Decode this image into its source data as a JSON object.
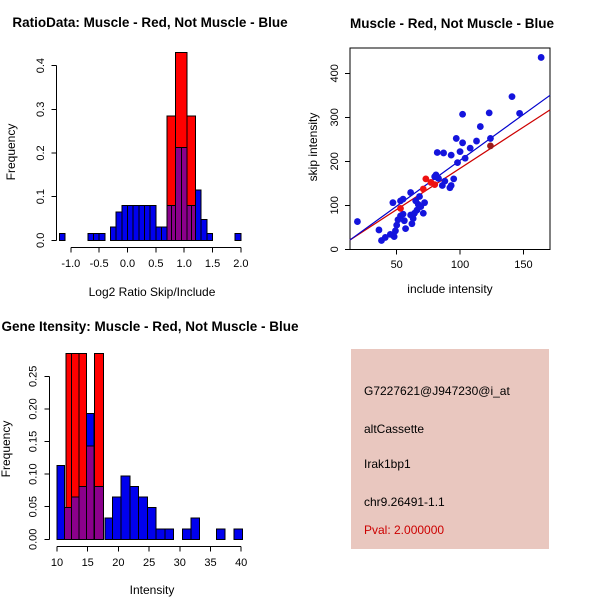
{
  "colors": {
    "background": "#ffffff",
    "hist_blue": "#0000ee",
    "hist_red": "#ff0000",
    "hist_overlap_purple": "#8b008b",
    "bar_stroke": "#000000",
    "point_blue": "#1414dd",
    "point_red": "#ee1111",
    "point_darkred": "#9b1b1b",
    "line_blue": "#0000cd",
    "line_red": "#cd0000",
    "axis_black": "#000000",
    "card_bg": "#e9c7bf",
    "card_text": "#000000",
    "pval_red": "#cc0000"
  },
  "info_card": {
    "lines": [
      {
        "text": "G7227621@J947230@i_at",
        "kind": "probe-id"
      },
      {
        "text": "altCassette",
        "kind": "event-type"
      },
      {
        "text": "Irak1bp1",
        "kind": "gene-symbol"
      },
      {
        "text": "chr9.26491-1.1",
        "kind": "locus"
      },
      {
        "text": "Pval: 2.000000",
        "kind": "pvalue"
      }
    ]
  },
  "chart_data": [
    {
      "type": "bar",
      "subtype": "overlaid-histograms",
      "title": "RatioData: Muscle - Red, Not Muscle - Blue",
      "xlabel": "Log2 Ratio Skip/Include",
      "ylabel": "Frequency",
      "xlim": [
        -1.3,
        2.1
      ],
      "ylim": [
        0,
        0.43
      ],
      "x_ticks": [
        -1.0,
        -0.5,
        0.0,
        0.5,
        1.0,
        1.5,
        2.0
      ],
      "x_tick_labels": [
        "-1.0",
        "-0.5",
        "0.0",
        "0.5",
        "1.0",
        "1.5",
        "2.0"
      ],
      "y_ticks": [
        0.0,
        0.1,
        0.2,
        0.3,
        0.4
      ],
      "y_tick_labels": [
        "0.0",
        "0.1",
        "0.2",
        "0.3",
        "0.4"
      ],
      "grid": false,
      "legend": "colors encode groups: Muscle = red, Not Muscle = blue, overlap = purple",
      "series": [
        {
          "name": "muscle-red-bars",
          "bars": [
            [
              0.7,
              0.85,
              0.285
            ],
            [
              0.85,
              1.05,
              0.43
            ],
            [
              1.05,
              1.2,
              0.285
            ]
          ]
        },
        {
          "name": "notmuscle-blue-bars",
          "bars": [
            [
              -1.2,
              -1.1,
              0.016
            ],
            [
              -0.7,
              -0.6,
              0.016
            ],
            [
              -0.6,
              -0.5,
              0.016
            ],
            [
              -0.5,
              -0.4,
              0.016
            ],
            [
              -0.3,
              -0.2,
              0.03
            ],
            [
              -0.2,
              -0.1,
              0.065
            ],
            [
              -0.1,
              0.0,
              0.08
            ],
            [
              0.0,
              0.1,
              0.08
            ],
            [
              0.1,
              0.2,
              0.08
            ],
            [
              0.2,
              0.3,
              0.08
            ],
            [
              0.3,
              0.4,
              0.08
            ],
            [
              0.4,
              0.5,
              0.08
            ],
            [
              0.5,
              0.6,
              0.03
            ],
            [
              0.6,
              0.7,
              0.03
            ],
            [
              1.2,
              1.3,
              0.115
            ],
            [
              1.3,
              1.4,
              0.048
            ],
            [
              1.4,
              1.5,
              0.016
            ],
            [
              1.9,
              2.0,
              0.016
            ]
          ]
        },
        {
          "name": "overlap-purple-bars",
          "bars": [
            [
              0.7,
              0.78,
              0.08
            ],
            [
              0.78,
              0.85,
              0.08
            ],
            [
              0.85,
              0.95,
              0.213
            ],
            [
              0.95,
              1.05,
              0.213
            ],
            [
              1.05,
              1.13,
              0.08
            ],
            [
              1.13,
              1.2,
              0.08
            ]
          ]
        }
      ]
    },
    {
      "type": "scatter",
      "title": "Muscle - Red, Not Muscle - Blue",
      "xlabel": "include intensity",
      "ylabel": "skip intensity",
      "xlim": [
        13,
        171
      ],
      "ylim": [
        0,
        464
      ],
      "x_ticks": [
        50,
        100,
        150
      ],
      "x_tick_labels": [
        "50",
        "100",
        "150"
      ],
      "y_ticks": [
        0,
        100,
        200,
        300,
        400
      ],
      "y_tick_labels": [
        "0",
        "100",
        "200",
        "300",
        "400"
      ],
      "grid": false,
      "series": [
        {
          "name": "not-muscle-blue-points",
          "points": [
            [
              19,
              63
            ],
            [
              36,
              44
            ],
            [
              38,
              20
            ],
            [
              41,
              27
            ],
            [
              45,
              34
            ],
            [
              48,
              29
            ],
            [
              49,
              42
            ],
            [
              50,
              55
            ],
            [
              51,
              67
            ],
            [
              53,
              76
            ],
            [
              55,
              80
            ],
            [
              56,
              65
            ],
            [
              57,
              47
            ],
            [
              61,
              78
            ],
            [
              62,
              58
            ],
            [
              63,
              70
            ],
            [
              64,
              82
            ],
            [
              66,
              89
            ],
            [
              67,
              102
            ],
            [
              69,
              97
            ],
            [
              71,
              82
            ],
            [
              72,
              106
            ],
            [
              47,
              106
            ],
            [
              53,
              110
            ],
            [
              55,
              114
            ],
            [
              61,
              129
            ],
            [
              65,
              110
            ],
            [
              68,
              120
            ],
            [
              80,
              165
            ],
            [
              83,
              161
            ],
            [
              88,
              155
            ],
            [
              95,
              160
            ],
            [
              93,
              145
            ],
            [
              92,
              140
            ],
            [
              86,
              145
            ],
            [
              81,
              169
            ],
            [
              87,
              219
            ],
            [
              93,
              214
            ],
            [
              82,
              220
            ],
            [
              98,
              197
            ],
            [
              104,
              207
            ],
            [
              97,
              252
            ],
            [
              108,
              230
            ],
            [
              100,
              222
            ],
            [
              102,
              242
            ],
            [
              113,
              246
            ],
            [
              116,
              279
            ],
            [
              124,
              252
            ],
            [
              102,
              307
            ],
            [
              123,
              310
            ],
            [
              141,
              347
            ],
            [
              147,
              309
            ],
            [
              164,
              436
            ]
          ]
        },
        {
          "name": "muscle-red-points",
          "points": [
            [
              53,
              93
            ],
            [
              71,
              137
            ],
            [
              73,
              160
            ],
            [
              77,
              152
            ],
            [
              80,
              147
            ]
          ]
        },
        {
          "name": "dark-red-point",
          "points": [
            [
              124,
              235
            ]
          ]
        }
      ],
      "fit_lines": [
        {
          "name": "blue-fit",
          "x0": 13,
          "y0": 21,
          "x1": 171,
          "y1": 350
        },
        {
          "name": "red-fit",
          "x0": 13,
          "y0": 21,
          "x1": 171,
          "y1": 317
        }
      ]
    },
    {
      "type": "bar",
      "subtype": "overlaid-histograms",
      "title": "Gene Itensity: Muscle - Red, Not Muscle - Blue",
      "xlabel": "Intensity",
      "ylabel": "Frequency",
      "xlim": [
        9.5,
        41
      ],
      "ylim": [
        0,
        0.29
      ],
      "x_ticks": [
        10,
        15,
        20,
        25,
        30,
        35,
        40
      ],
      "x_tick_labels": [
        "10",
        "15",
        "20",
        "25",
        "30",
        "35",
        "40"
      ],
      "y_ticks": [
        0.0,
        0.05,
        0.1,
        0.15,
        0.2,
        0.25
      ],
      "y_tick_labels": [
        "0.00",
        "0.05",
        "0.10",
        "0.15",
        "0.20",
        "0.25"
      ],
      "grid": false,
      "legend": "colors encode groups: Muscle = red, Not Muscle = blue, overlap = purple",
      "series": [
        {
          "name": "muscle-red-bars",
          "bars": [
            [
              11.5,
              12.4,
              0.285
            ],
            [
              12.4,
              13.6,
              0.285
            ],
            [
              13.6,
              14.8,
              0.285
            ],
            [
              14.8,
              16.0,
              0.143
            ],
            [
              16.1,
              17.6,
              0.285
            ]
          ]
        },
        {
          "name": "notmuscle-blue-bars",
          "bars": [
            [
              10.0,
              11.2,
              0.113
            ],
            [
              14.8,
              16.0,
              0.193
            ],
            [
              17.8,
              19.0,
              0.033
            ],
            [
              19.0,
              20.4,
              0.065
            ],
            [
              20.4,
              21.9,
              0.097
            ],
            [
              21.9,
              23.3,
              0.081
            ],
            [
              23.3,
              24.7,
              0.065
            ],
            [
              24.7,
              26.1,
              0.049
            ],
            [
              26.1,
              27.6,
              0.016
            ],
            [
              27.6,
              29.0,
              0.016
            ],
            [
              30.4,
              31.8,
              0.016
            ],
            [
              31.8,
              33.2,
              0.033
            ],
            [
              36.0,
              37.4,
              0.016
            ],
            [
              38.8,
              40.2,
              0.016
            ]
          ]
        },
        {
          "name": "overlap-purple-bars",
          "bars": [
            [
              11.2,
              12.4,
              0.049
            ],
            [
              12.4,
              13.6,
              0.065
            ],
            [
              13.6,
              14.8,
              0.081
            ],
            [
              14.8,
              16.0,
              0.143
            ],
            [
              16.1,
              17.6,
              0.081
            ]
          ]
        }
      ]
    }
  ]
}
